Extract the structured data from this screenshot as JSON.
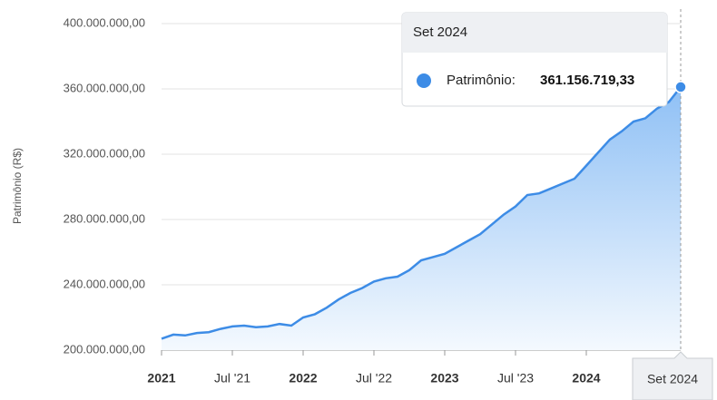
{
  "chart_data": {
    "type": "area",
    "y_axis_label": "Patrimônio (R$)",
    "categories": [
      "2021",
      null,
      null,
      null,
      null,
      null,
      "Jul '21",
      null,
      null,
      null,
      null,
      null,
      "2022",
      null,
      null,
      null,
      null,
      null,
      "Jul '22",
      null,
      null,
      null,
      null,
      null,
      "2023",
      null,
      null,
      null,
      null,
      null,
      "Jul '23",
      null,
      null,
      null,
      null,
      null,
      "2024",
      null,
      null,
      null,
      null,
      null,
      null,
      null,
      "Set 2024"
    ],
    "series": [
      {
        "name": "Patrimônio",
        "color": "#3d8ce6",
        "values": [
          207000000,
          209500000,
          209000000,
          210500000,
          211000000,
          213000000,
          214500000,
          215000000,
          214000000,
          214500000,
          216000000,
          215000000,
          220000000,
          222000000,
          226000000,
          231000000,
          235000000,
          238000000,
          242000000,
          244000000,
          245000000,
          249000000,
          255000000,
          257000000,
          259000000,
          263000000,
          267000000,
          271000000,
          277000000,
          283000000,
          288000000,
          295000000,
          296000000,
          299000000,
          302000000,
          305000000,
          313000000,
          321000000,
          329000000,
          334000000,
          340000000,
          342000000,
          348000000,
          352000000,
          361156719.33
        ]
      }
    ],
    "ylim": [
      200000000,
      400000000
    ],
    "yticks": [
      {
        "value": 200000000,
        "label": "200.000.000,00"
      },
      {
        "value": 240000000,
        "label": "240.000.000,00"
      },
      {
        "value": 280000000,
        "label": "280.000.000,00"
      },
      {
        "value": 320000000,
        "label": "320.000.000,00"
      },
      {
        "value": 360000000,
        "label": "360.000.000,00"
      },
      {
        "value": 400000000,
        "label": "400.000.000,00"
      }
    ],
    "grid": true,
    "tooltip": {
      "label": "Patrimônio:",
      "value_label": "361.156.719,33"
    }
  }
}
